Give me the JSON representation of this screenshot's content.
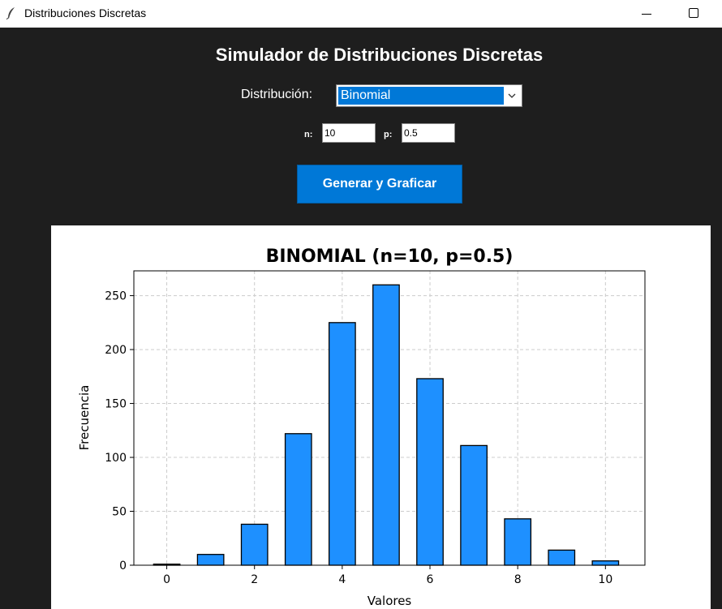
{
  "window": {
    "title": "Distribuciones Discretas"
  },
  "header": {
    "title": "Simulador de Distribuciones Discretas"
  },
  "controls": {
    "distribution_label": "Distribución:",
    "distribution_value": "Binomial",
    "n_label": "n:",
    "n_value": "10",
    "p_label": "p:",
    "p_value": "0.5",
    "generate_label": "Generar y Graficar"
  },
  "colors": {
    "bar": "#1e90ff",
    "accent": "#0078d7",
    "background": "#1e1e1e"
  },
  "chart_data": {
    "type": "bar",
    "title": "BINOMIAL (n=10, p=0.5)",
    "xlabel": "Valores",
    "ylabel": "Frecuencia",
    "x": [
      0,
      1,
      2,
      3,
      4,
      5,
      6,
      7,
      8,
      9,
      10
    ],
    "values": [
      1,
      10,
      38,
      122,
      225,
      260,
      173,
      111,
      43,
      14,
      4
    ],
    "xticks": [
      0,
      2,
      4,
      6,
      8,
      10
    ],
    "yticks": [
      0,
      50,
      100,
      150,
      200,
      250
    ],
    "xlim": [
      -0.75,
      10.9
    ],
    "ylim": [
      0,
      273
    ],
    "grid": true
  }
}
